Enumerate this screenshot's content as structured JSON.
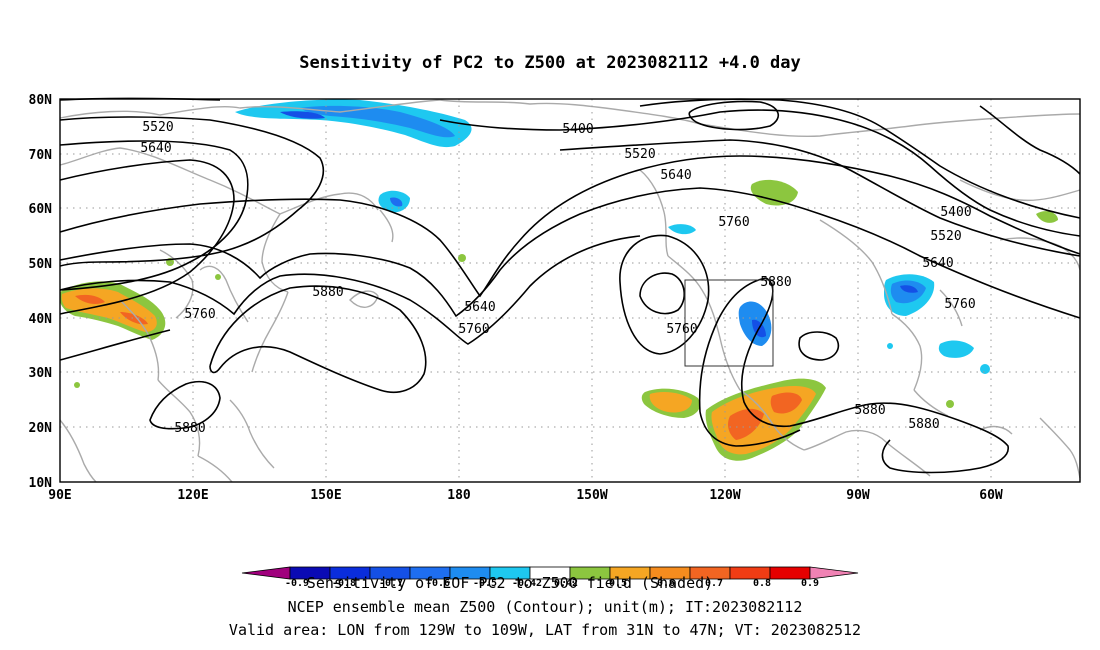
{
  "title": "Sensitivity of PC2 to Z500 at 2023082112 +4.0 day",
  "map": {
    "lat_labels": [
      "80N",
      "70N",
      "60N",
      "50N",
      "40N",
      "30N",
      "20N",
      "10N"
    ],
    "lon_labels": [
      "90E",
      "120E",
      "150E",
      "180",
      "150W",
      "120W",
      "90W",
      "60W"
    ],
    "valid_box": {
      "lon_from": "129W",
      "lon_to": "109W",
      "lat_from": "31N",
      "lat_to": "47N"
    },
    "colors": {
      "coastline": "#aaaaaa",
      "contour": "#000000",
      "shade_green": "#8cc63f",
      "shade_orange": "#f5a623",
      "shade_dark_orange": "#f26522",
      "shade_light_blue": "#1ec8f0",
      "shade_blue": "#1e8cf0",
      "shade_dark_blue": "#1450e6"
    }
  },
  "contour_labels": [
    "5520",
    "5640",
    "5400",
    "5520",
    "5640",
    "5760",
    "5400",
    "5520",
    "5640",
    "5760",
    "5880",
    "5880",
    "5760",
    "5640",
    "5760",
    "5760",
    "5880",
    "5880",
    "5880"
  ],
  "colorbar": {
    "ticks": [
      "-0.9",
      "-0.8",
      "-0.7",
      "-0.6",
      "-0.5",
      "-0.42",
      "0.42",
      "0.5",
      "0.6",
      "0.7",
      "0.8",
      "0.9"
    ],
    "colors": [
      "#a0007d",
      "#0a0ab4",
      "#0a2ddc",
      "#1450e6",
      "#1e6ef0",
      "#1e8cf0",
      "#1ec8f0",
      "#ffffff",
      "#8cc63f",
      "#f5a623",
      "#f58c1e",
      "#f26522",
      "#f03c14",
      "#e60000",
      "#f082b4"
    ]
  },
  "captions": {
    "line1": "Sensitivity of EOF PC2 to Z500 field (Shaded)",
    "line2": "NCEP ensemble mean Z500 (Contour); unit(m); IT:2023082112",
    "line3": "Valid area: LON from 129W to 109W, LAT from 31N to 47N; VT: 2023082512"
  }
}
